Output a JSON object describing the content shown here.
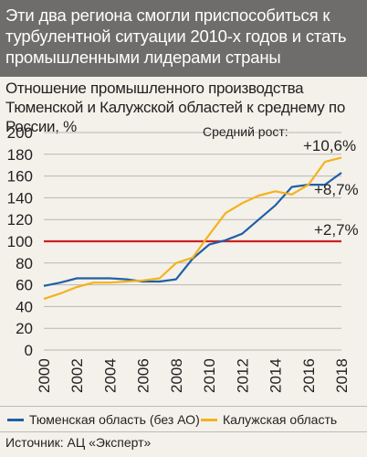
{
  "header": {
    "title": "Эти два региона смогли приспособиться к турбулентной ситуации 2010-х годов и стать промышленными лидерами страны"
  },
  "chart_data": {
    "type": "line",
    "title": "Отношение промышленного производства Тюменской и Калужской областей к среднему по России, %",
    "x": [
      2000,
      2001,
      2002,
      2003,
      2004,
      2005,
      2006,
      2007,
      2008,
      2009,
      2010,
      2011,
      2012,
      2013,
      2014,
      2015,
      2016,
      2017,
      2018
    ],
    "series": [
      {
        "name": "Тюменская область (без АО)",
        "color": "#1f5fa8",
        "values": [
          59,
          62,
          66,
          66,
          66,
          65,
          63,
          63,
          65,
          84,
          97,
          101,
          107,
          120,
          133,
          150,
          152,
          152,
          163
        ]
      },
      {
        "name": "Калужская область",
        "color": "#f5b21c",
        "values": [
          47,
          52,
          58,
          62,
          62,
          63,
          64,
          66,
          80,
          85,
          106,
          126,
          135,
          142,
          146,
          143,
          152,
          173,
          177
        ]
      }
    ],
    "reference_line": {
      "value": 100,
      "color": "#cc2222"
    },
    "x_ticks": [
      "2000",
      "2002",
      "2004",
      "2006",
      "2008",
      "2010",
      "2012",
      "2014",
      "2016",
      "2018"
    ],
    "y_ticks": [
      "0",
      "20",
      "40",
      "60",
      "80",
      "100",
      "120",
      "140",
      "160",
      "180",
      "200"
    ],
    "ylim": [
      0,
      200
    ],
    "xlim": [
      2000,
      2018
    ],
    "grid": "horizontal",
    "legend": "bottom",
    "annotations": {
      "growth_label": "Средний рост:",
      "kaluga_growth": "+10,6%",
      "tyumen_growth": "+8,7%",
      "russia_growth": "+2,7%"
    }
  },
  "source": "Источник: АЦ «Эксперт»"
}
